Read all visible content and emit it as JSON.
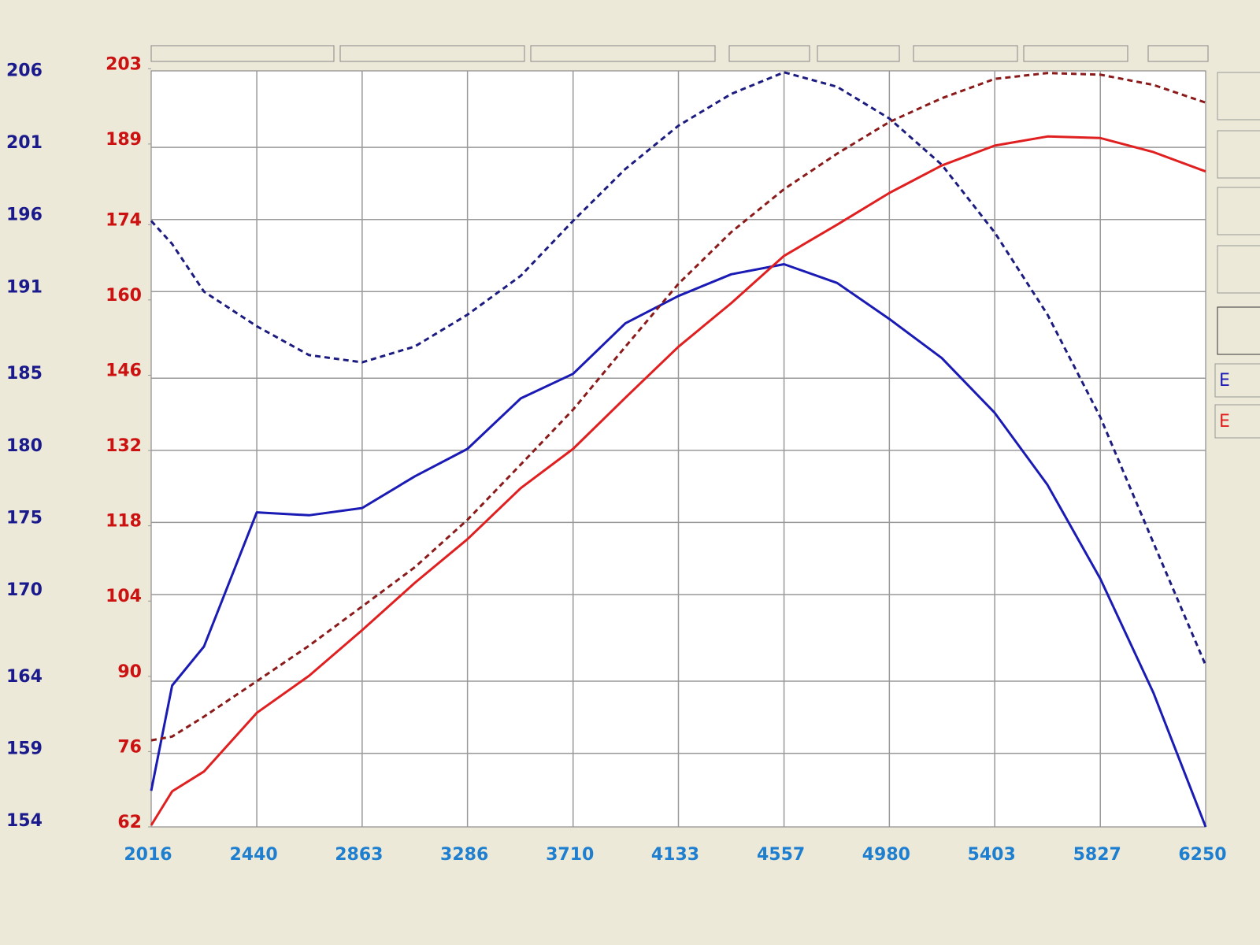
{
  "chart_data": {
    "type": "line",
    "x": [
      2016,
      2100,
      2228,
      2440,
      2650,
      2863,
      3075,
      3286,
      3500,
      3710,
      3920,
      4133,
      4345,
      4557,
      4770,
      4980,
      5190,
      5403,
      5615,
      5827,
      6040,
      6250
    ],
    "xlim": [
      2016,
      6250
    ],
    "xticks": [
      2016,
      2440,
      2863,
      3286,
      3710,
      4133,
      4557,
      4980,
      5403,
      5827,
      6250
    ],
    "ylim": [
      153.9,
      206.3
    ],
    "yticks": [
      154,
      159,
      164,
      170,
      175,
      180,
      185,
      191,
      196,
      201,
      206
    ],
    "y2lim": [
      62,
      202.6
    ],
    "y2ticks": [
      62,
      76,
      90,
      104,
      118,
      132,
      146,
      160,
      174,
      189,
      203
    ],
    "grid": true,
    "series": [
      {
        "color": "#1a1ab4",
        "dash": false,
        "values": [
          156.4,
          163.7,
          166.4,
          175.7,
          175.5,
          176.0,
          178.2,
          180.1,
          183.6,
          185.3,
          188.8,
          190.7,
          192.2,
          192.9,
          191.6,
          189.1,
          186.4,
          182.6,
          177.6,
          171.1,
          163.2,
          153.9
        ]
      },
      {
        "color": "#1c1c80",
        "dash": true,
        "values": [
          195.9,
          194.3,
          191.0,
          188.6,
          186.6,
          186.1,
          187.2,
          189.4,
          192.1,
          195.9,
          199.5,
          202.5,
          204.7,
          206.2,
          205.2,
          203.0,
          199.8,
          195.1,
          189.4,
          182.3,
          173.6,
          165.1
        ]
      },
      {
        "color": "#e02020",
        "dash": false,
        "axis": "y2",
        "values": [
          62.3,
          68.6,
          72.3,
          83.2,
          90.1,
          98.6,
          107.4,
          115.5,
          125.0,
          132.3,
          141.8,
          151.3,
          159.4,
          168.2,
          174.0,
          179.9,
          185.0,
          188.7,
          190.4,
          190.1,
          187.5,
          183.9
        ]
      },
      {
        "color": "#8b1a1a",
        "dash": true,
        "axis": "y2",
        "values": [
          78.1,
          78.8,
          82.5,
          89.1,
          95.7,
          103.0,
          110.3,
          119.1,
          129.4,
          139.6,
          151.3,
          163.0,
          172.6,
          180.6,
          187.2,
          193.1,
          197.5,
          201.1,
          202.2,
          201.9,
          200.0,
          196.7
        ]
      }
    ]
  },
  "panel_labels": [
    "E",
    "E"
  ]
}
